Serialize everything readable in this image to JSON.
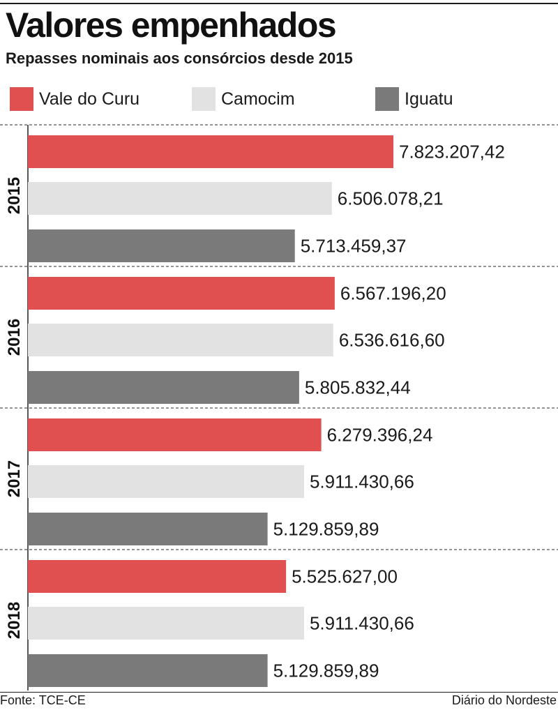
{
  "header": {
    "title": "Valores empenhados",
    "subtitle": "Repasses nominais aos consórcios desde 2015"
  },
  "legend": [
    {
      "label": "Vale do Curu",
      "color": "#e05050"
    },
    {
      "label": "Camocim",
      "color": "#e2e2e2"
    },
    {
      "label": "Iguatu",
      "color": "#7a7a7a"
    }
  ],
  "chart_data": {
    "type": "bar",
    "orientation": "horizontal",
    "title": "Valores empenhados",
    "subtitle": "Repasses nominais aos consórcios desde 2015",
    "categories": [
      "2015",
      "2016",
      "2017",
      "2018"
    ],
    "series": [
      {
        "name": "Vale do Curu",
        "color": "#e05050",
        "values": [
          7823207.42,
          6567196.2,
          6279396.24,
          5525627.0
        ],
        "labels": [
          "7.823.207,42",
          "6.567.196,20",
          "6.279.396,24",
          "5.525.627,00"
        ]
      },
      {
        "name": "Camocim",
        "color": "#e2e2e2",
        "values": [
          6506078.21,
          6536616.6,
          5911430.66,
          5911430.66
        ],
        "labels": [
          "6.506.078,21",
          "6.536.616,60",
          "5.911.430,66",
          "5.911.430,66"
        ]
      },
      {
        "name": "Iguatu",
        "color": "#7a7a7a",
        "values": [
          5713459.37,
          5805832.44,
          5129859.89,
          5129859.89
        ],
        "labels": [
          "5.713.459,37",
          "5.805.832,44",
          "5.129.859,89",
          "5.129.859,89"
        ]
      }
    ],
    "xlim": [
      0,
      7823207.42
    ],
    "grid": false,
    "legend_position": "top"
  },
  "footer": {
    "source": "Fonte: TCE-CE",
    "credit": "Diário do Nordeste"
  }
}
